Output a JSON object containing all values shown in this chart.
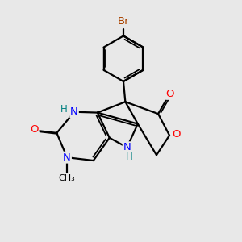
{
  "background_color": "#e8e8e8",
  "bond_color": "#000000",
  "atom_colors": {
    "N": "#0000ff",
    "O": "#ff0000",
    "Br": "#aa4400",
    "H": "#008080",
    "C": "#000000"
  },
  "figsize": [
    3.0,
    3.0
  ],
  "dpi": 100
}
